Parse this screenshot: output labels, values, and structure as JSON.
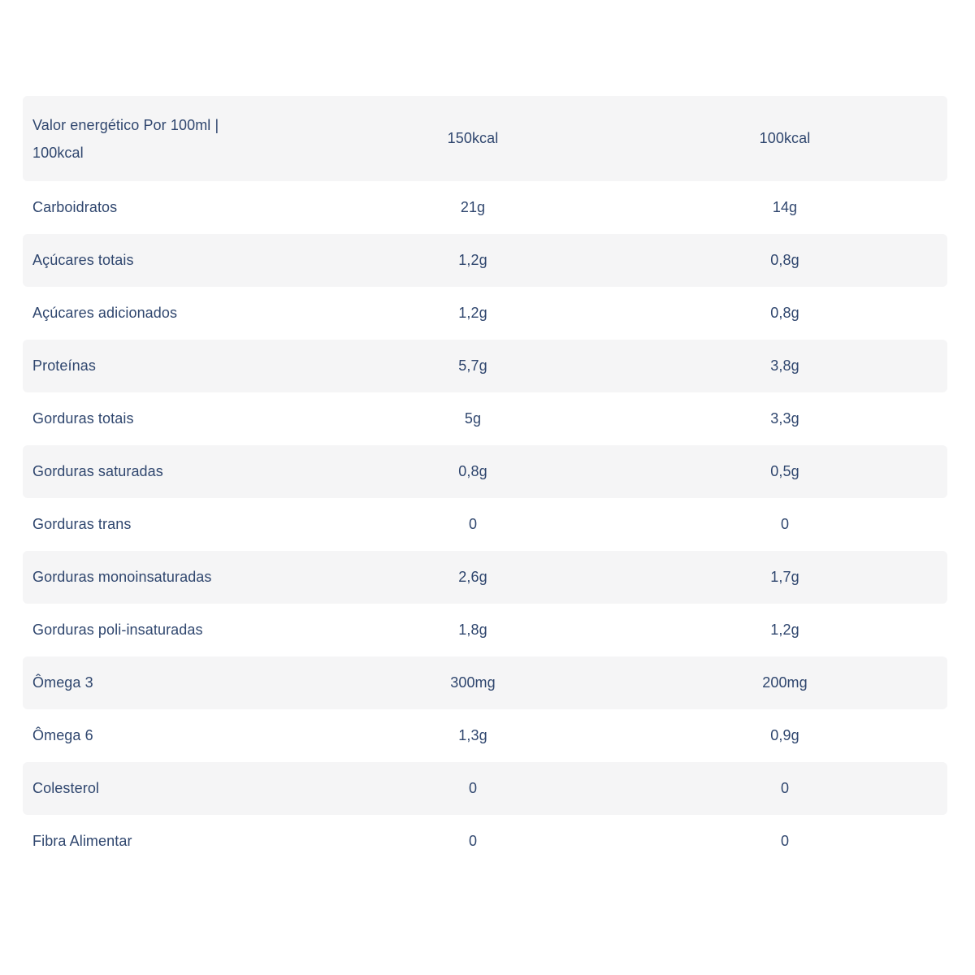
{
  "colors": {
    "text": "#2f466e",
    "stripe": "#f5f5f6",
    "background": "#ffffff"
  },
  "table": {
    "header": {
      "label": "Valor energético Por 100ml | 100kcal",
      "col1": "150kcal",
      "col2": "100kcal"
    },
    "rows": [
      {
        "label": "Carboidratos",
        "col1": "21g",
        "col2": "14g"
      },
      {
        "label": "Açúcares totais",
        "col1": "1,2g",
        "col2": "0,8g"
      },
      {
        "label": "Açúcares adicionados",
        "col1": "1,2g",
        "col2": "0,8g"
      },
      {
        "label": "Proteínas",
        "col1": "5,7g",
        "col2": "3,8g"
      },
      {
        "label": "Gorduras totais",
        "col1": "5g",
        "col2": "3,3g"
      },
      {
        "label": "Gorduras saturadas",
        "col1": "0,8g",
        "col2": "0,5g"
      },
      {
        "label": "Gorduras trans",
        "col1": "0",
        "col2": "0"
      },
      {
        "label": "Gorduras monoinsaturadas",
        "col1": "2,6g",
        "col2": "1,7g"
      },
      {
        "label": "Gorduras poli-insaturadas",
        "col1": "1,8g",
        "col2": "1,2g"
      },
      {
        "label": "Ômega 3",
        "col1": "300mg",
        "col2": "200mg"
      },
      {
        "label": "Ômega 6",
        "col1": "1,3g",
        "col2": "0,9g"
      },
      {
        "label": "Colesterol",
        "col1": "0",
        "col2": "0"
      },
      {
        "label": "Fibra Alimentar",
        "col1": "0",
        "col2": "0"
      }
    ]
  }
}
